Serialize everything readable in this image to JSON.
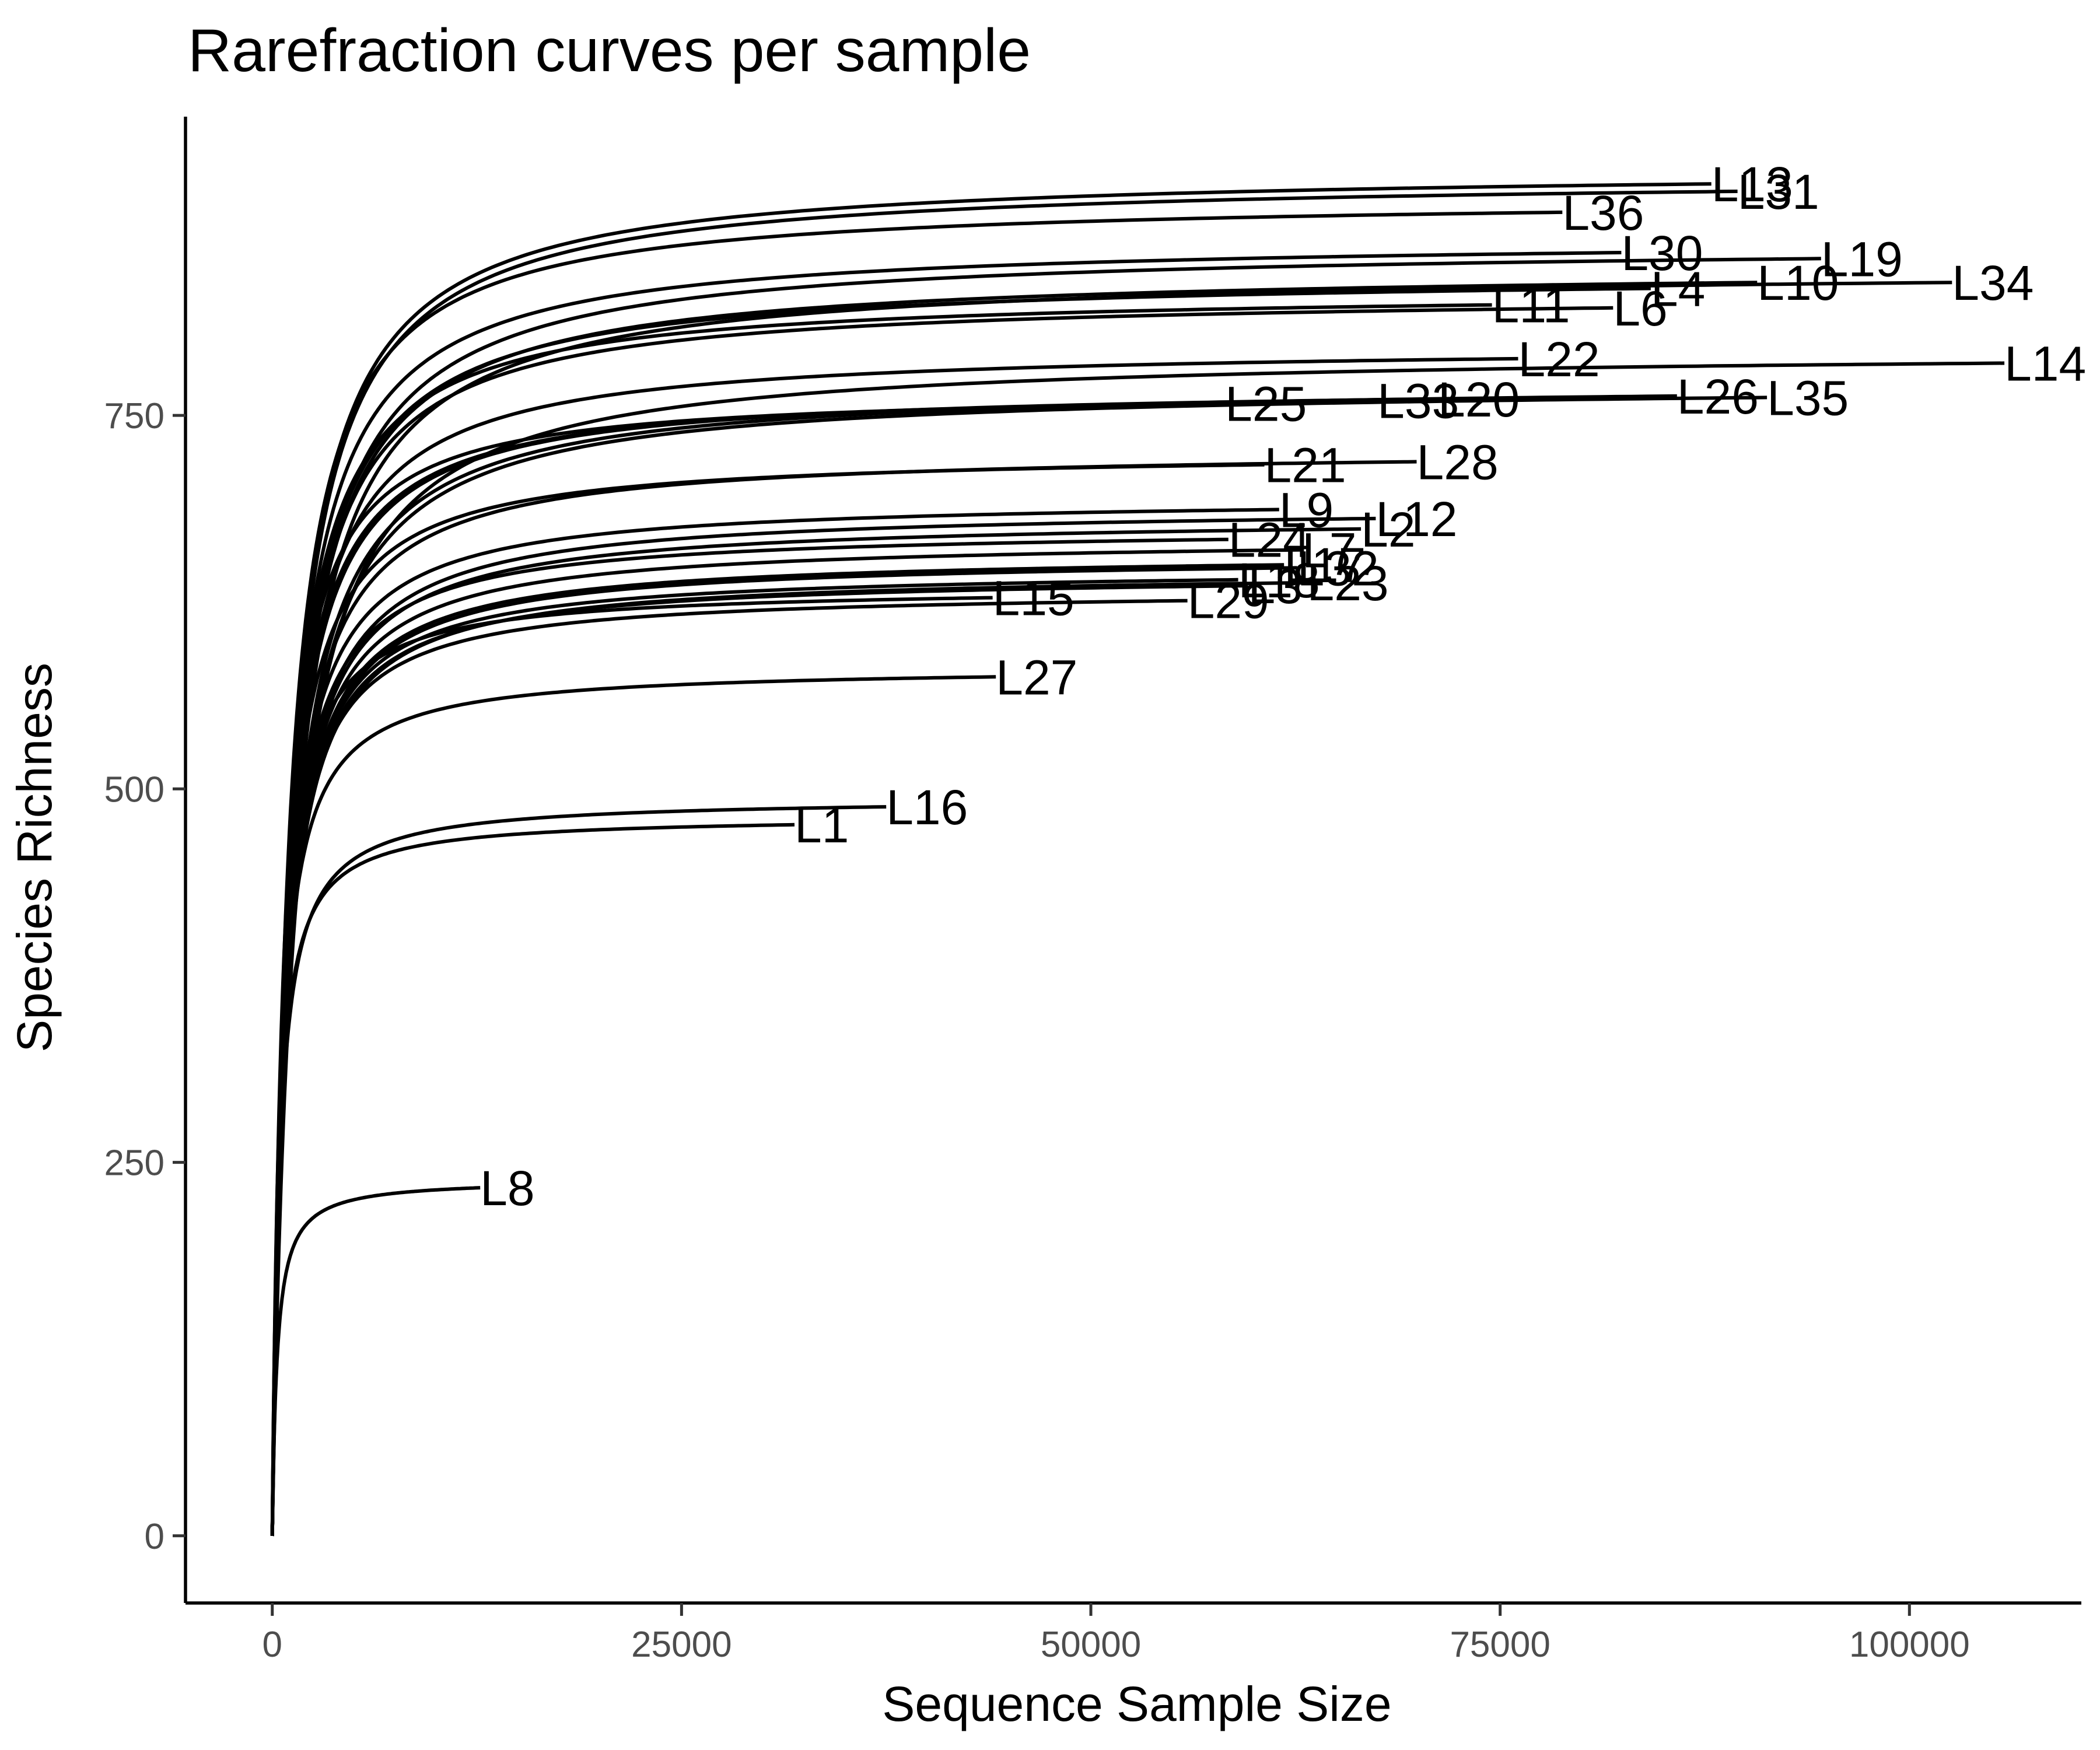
{
  "chart_data": {
    "type": "line",
    "title": "Rarefraction curves per sample",
    "xlabel": "Sequence Sample Size",
    "ylabel": "Species Richness",
    "xlim": [
      -5300,
      110500
    ],
    "ylim": [
      -45,
      950
    ],
    "xticks": [
      0,
      25000,
      50000,
      75000,
      100000
    ],
    "xtick_labels": [
      "0",
      "25000",
      "50000",
      "75000",
      "100000"
    ],
    "yticks": [
      0,
      250,
      500,
      750
    ],
    "ytick_labels": [
      "0",
      "250",
      "500",
      "750"
    ],
    "grid": false,
    "legend": "none",
    "series": [
      {
        "name": "L13",
        "max_size": 87900,
        "richness": 905
      },
      {
        "name": "L31",
        "max_size": 89500,
        "richness": 900
      },
      {
        "name": "L36",
        "max_size": 78800,
        "richness": 886
      },
      {
        "name": "L30",
        "max_size": 82400,
        "richness": 859
      },
      {
        "name": "L19",
        "max_size": 94600,
        "richness": 855
      },
      {
        "name": "L10",
        "max_size": 90700,
        "richness": 839
      },
      {
        "name": "L34",
        "max_size": 102600,
        "richness": 839
      },
      {
        "name": "L4",
        "max_size": 84200,
        "richness": 835
      },
      {
        "name": "L11",
        "max_size": 74500,
        "richness": 824
      },
      {
        "name": "L6",
        "max_size": 81900,
        "richness": 822
      },
      {
        "name": "L22",
        "max_size": 76100,
        "richness": 788
      },
      {
        "name": "L14",
        "max_size": 105800,
        "richness": 785
      },
      {
        "name": "L26",
        "max_size": 85800,
        "richness": 763
      },
      {
        "name": "L35",
        "max_size": 91300,
        "richness": 762
      },
      {
        "name": "L20",
        "max_size": 71200,
        "richness": 761
      },
      {
        "name": "L33",
        "max_size": 67500,
        "richness": 760
      },
      {
        "name": "L25",
        "max_size": 58200,
        "richness": 758
      },
      {
        "name": "L28",
        "max_size": 69900,
        "richness": 719
      },
      {
        "name": "L21",
        "max_size": 60600,
        "richness": 717
      },
      {
        "name": "L9",
        "max_size": 61500,
        "richness": 687
      },
      {
        "name": "L12",
        "max_size": 67400,
        "richness": 681
      },
      {
        "name": "L2",
        "max_size": 66500,
        "richness": 674
      },
      {
        "name": "L24",
        "max_size": 58400,
        "richness": 667
      },
      {
        "name": "L7",
        "max_size": 62900,
        "richness": 660
      },
      {
        "name": "L17",
        "max_size": 61800,
        "richness": 650
      },
      {
        "name": "L32",
        "max_size": 62600,
        "richness": 648
      },
      {
        "name": "L18",
        "max_size": 59000,
        "richness": 640
      },
      {
        "name": "L23",
        "max_size": 63200,
        "richness": 638
      },
      {
        "name": "L3",
        "max_size": 59600,
        "richness": 636
      },
      {
        "name": "L29",
        "max_size": 55900,
        "richness": 626
      },
      {
        "name": "L15",
        "max_size": 44000,
        "richness": 628
      },
      {
        "name": "L27",
        "max_size": 44200,
        "richness": 575
      },
      {
        "name": "L16",
        "max_size": 37500,
        "richness": 488
      },
      {
        "name": "L1",
        "max_size": 31900,
        "richness": 476
      },
      {
        "name": "L8",
        "max_size": 12700,
        "richness": 233
      }
    ]
  }
}
